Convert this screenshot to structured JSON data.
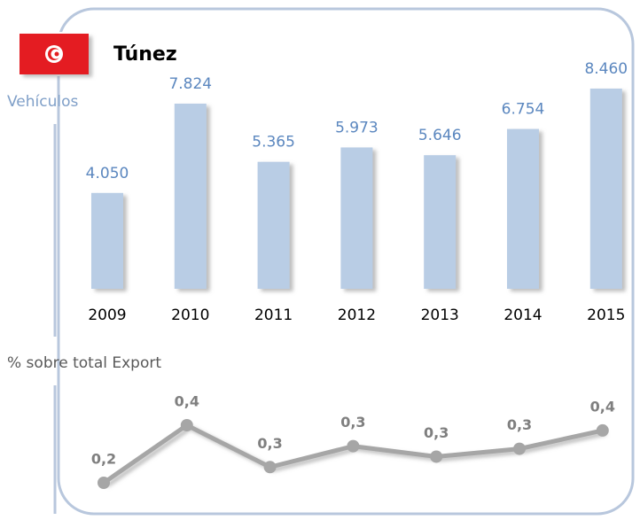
{
  "chart_data": [
    {
      "type": "bar",
      "title": "Túnez",
      "subtitle": "Vehículos",
      "categories": [
        "2009",
        "2010",
        "2011",
        "2012",
        "2013",
        "2014",
        "2015"
      ],
      "values": [
        4050,
        7824,
        5365,
        5973,
        5646,
        6754,
        8460
      ],
      "value_labels": [
        "4.050",
        "7.824",
        "5.365",
        "5.973",
        "5.646",
        "6.754",
        "8.460"
      ],
      "color": "#b9cde5"
    },
    {
      "type": "line",
      "title": "% sobre total Export",
      "categories": [
        "2009",
        "2010",
        "2011",
        "2012",
        "2013",
        "2014",
        "2015"
      ],
      "values": [
        0.2,
        0.42,
        0.26,
        0.34,
        0.3,
        0.33,
        0.4
      ],
      "value_labels": [
        "0,2",
        "0,4",
        "0,3",
        "0,3",
        "0,3",
        "0,3",
        "0,4"
      ],
      "color": "#a6a6a6"
    }
  ]
}
